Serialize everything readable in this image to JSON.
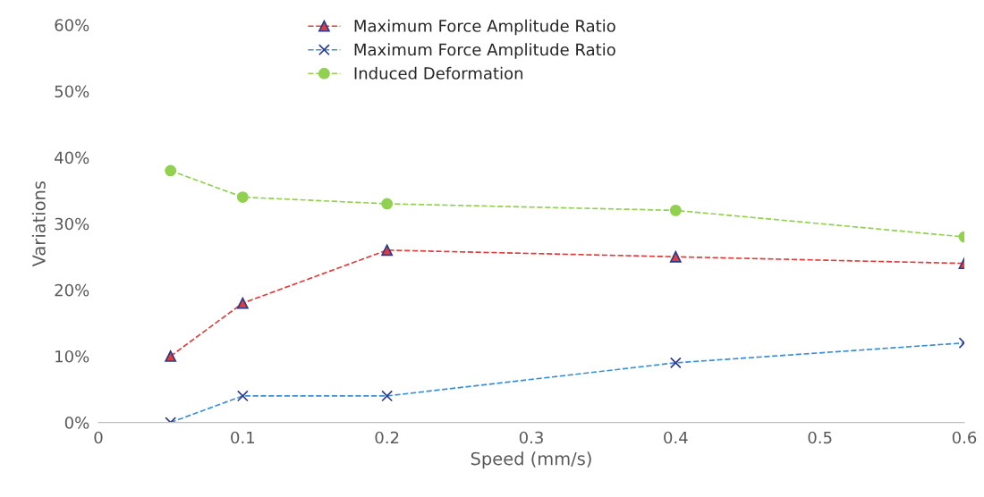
{
  "chart_data": {
    "type": "line",
    "xlabel": "Speed (mm/s)",
    "ylabel": "Variations",
    "x": [
      0.05,
      0.1,
      0.2,
      0.4,
      0.6
    ],
    "series": [
      {
        "name": "Maximum Force Amplitude Ratio",
        "color": "#e03c3c",
        "marker": "triangle",
        "values": [
          0.1,
          0.18,
          0.26,
          0.25,
          0.24
        ]
      },
      {
        "name": "Maximum Force Amplitude Ratio",
        "color": "#3a8fd6",
        "marker": "cross",
        "values": [
          0.0,
          0.04,
          0.04,
          0.09,
          0.12
        ]
      },
      {
        "name": "Induced Deformation",
        "color": "#92d050",
        "marker": "circle",
        "values": [
          0.38,
          0.34,
          0.33,
          0.32,
          0.28
        ]
      }
    ],
    "xlim": [
      0,
      0.6
    ],
    "xticks": [
      0,
      0.1,
      0.2,
      0.3,
      0.4,
      0.5,
      0.6
    ],
    "ylim": [
      0,
      0.6
    ],
    "yticks": [
      {
        "value": 0,
        "label": "0%"
      },
      {
        "value": 0.1,
        "label": "10%"
      },
      {
        "value": 0.2,
        "label": "20%"
      },
      {
        "value": 0.3,
        "label": "30%"
      },
      {
        "value": 0.4,
        "label": "40%"
      },
      {
        "value": 0.5,
        "label": "50%"
      },
      {
        "value": 0.6,
        "label": "60%"
      }
    ],
    "line_style": "dashed",
    "grid": false,
    "legend": "top"
  }
}
